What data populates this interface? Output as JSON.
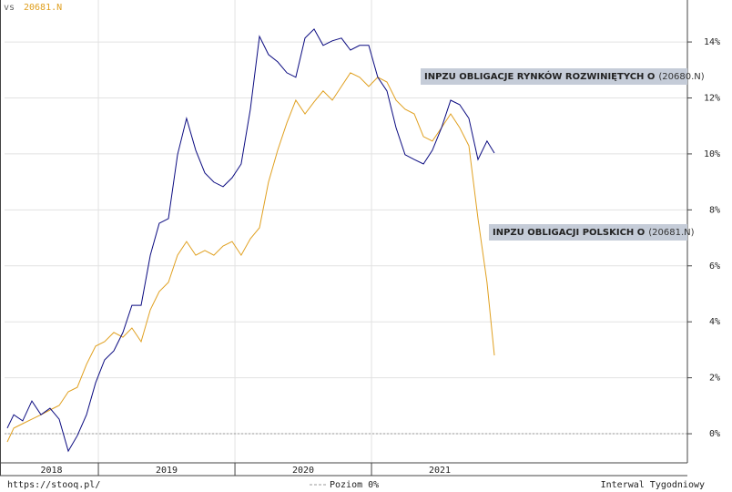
{
  "header": {
    "vs": "vs",
    "compare": "20681.N"
  },
  "footer": {
    "source": "https://stooq.pl/",
    "interval": "Interwal Tygodniowy"
  },
  "chart_data": {
    "type": "line",
    "x": [
      2018.333,
      2018.38,
      2018.446,
      2018.513,
      2018.58,
      2018.646,
      2018.713,
      2018.78,
      2018.846,
      2018.913,
      2018.98,
      2019.046,
      2019.113,
      2019.18,
      2019.246,
      2019.313,
      2019.38,
      2019.446,
      2019.513,
      2019.58,
      2019.646,
      2019.713,
      2019.78,
      2019.846,
      2019.913,
      2019.98,
      2020.046,
      2020.113,
      2020.18,
      2020.246,
      2020.313,
      2020.38,
      2020.446,
      2020.513,
      2020.58,
      2020.646,
      2020.713,
      2020.78,
      2020.846,
      2020.913,
      2020.98,
      2021.046,
      2021.113,
      2021.18,
      2021.246,
      2021.313,
      2021.38,
      2021.446,
      2021.513,
      2021.58,
      2021.646,
      2021.713,
      2021.78,
      2021.846,
      2021.9
    ],
    "series": [
      {
        "name": "INPZU OBLIGACJE RYNKÓW ROZWINIĘTYCH O",
        "code": "(20680.N)",
        "color": "#0a0a80",
        "values": [
          0.2,
          0.68,
          0.46,
          1.17,
          0.68,
          0.91,
          0.52,
          -0.62,
          -0.07,
          0.68,
          1.82,
          2.64,
          2.96,
          3.62,
          4.59,
          4.59,
          6.38,
          7.52,
          7.69,
          9.97,
          11.27,
          10.13,
          9.32,
          8.99,
          8.83,
          9.15,
          9.64,
          11.6,
          14.2,
          13.55,
          13.29,
          12.9,
          12.74,
          14.14,
          14.46,
          13.88,
          14.04,
          14.14,
          13.71,
          13.88,
          13.88,
          12.74,
          12.25,
          10.94,
          9.97,
          9.8,
          9.64,
          10.13,
          10.94,
          11.92,
          11.76,
          11.27,
          9.8,
          10.46,
          10.03
        ]
      },
      {
        "name": "INPZU OBLIGACJI POLSKICH O",
        "code": "(20681.N)",
        "color": "#e0a020",
        "values": [
          -0.29,
          0.2,
          0.36,
          0.52,
          0.68,
          0.85,
          1.01,
          1.5,
          1.66,
          2.48,
          3.13,
          3.29,
          3.62,
          3.45,
          3.78,
          3.29,
          4.43,
          5.08,
          5.41,
          6.38,
          6.87,
          6.38,
          6.55,
          6.38,
          6.71,
          6.87,
          6.38,
          6.97,
          7.36,
          8.99,
          10.13,
          11.11,
          11.92,
          11.43,
          11.86,
          12.25,
          11.92,
          12.41,
          12.9,
          12.74,
          12.41,
          12.74,
          12.57,
          11.92,
          11.6,
          11.43,
          10.62,
          10.46,
          10.94,
          11.43,
          10.94,
          10.29,
          7.69,
          5.41,
          2.8
        ]
      }
    ],
    "xlim": [
      2018.313,
      2023.313
    ],
    "xticks": [
      2019,
      2020,
      2021
    ],
    "year_labels": [
      2018,
      2019,
      2020,
      2021
    ],
    "ylim": [
      -1.04,
      15.5
    ],
    "yticks": [
      {
        "value": 0,
        "label": "0%"
      },
      {
        "value": 2,
        "label": "2%"
      },
      {
        "value": 4,
        "label": "4%"
      },
      {
        "value": 6,
        "label": "6%"
      },
      {
        "value": 8,
        "label": "8%"
      },
      {
        "value": 10,
        "label": "10%"
      },
      {
        "value": 12,
        "label": "12%"
      },
      {
        "value": 14,
        "label": "14%"
      }
    ],
    "reference_line": {
      "value": 0,
      "label": "Poziom 0%"
    },
    "grid": true
  }
}
